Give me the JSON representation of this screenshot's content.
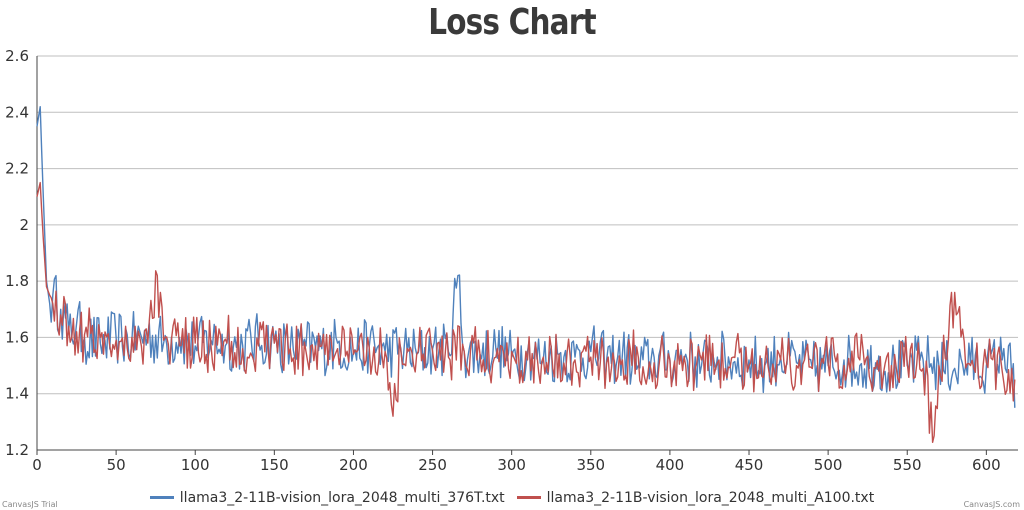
{
  "chart_data": {
    "type": "line",
    "title": "Loss Chart",
    "xlabel": "",
    "ylabel": "",
    "xlim": [
      0,
      620
    ],
    "ylim": [
      1.2,
      2.6
    ],
    "x_ticks": [
      "0",
      "50",
      "100",
      "150",
      "200",
      "250",
      "300",
      "350",
      "400",
      "450",
      "500",
      "550",
      "600"
    ],
    "y_ticks": [
      "1.2",
      "1.4",
      "1.6",
      "1.8",
      "2",
      "2.2",
      "2.4",
      "2.6"
    ],
    "grid": true,
    "legend_position": "bottom",
    "series": [
      {
        "name": "llama3_2-11B-vision_lora_2048_multi_376T.txt",
        "color": "#4f81bc",
        "x": [
          0,
          2,
          4,
          6,
          8,
          10,
          15,
          20,
          25,
          30,
          40,
          50,
          60,
          70,
          80,
          90,
          100,
          110,
          120,
          130,
          140,
          150,
          160,
          170,
          180,
          190,
          200,
          210,
          220,
          230,
          240,
          250,
          260,
          266,
          270,
          280,
          290,
          300,
          310,
          320,
          330,
          340,
          350,
          360,
          370,
          380,
          390,
          400,
          410,
          420,
          430,
          440,
          450,
          460,
          470,
          480,
          490,
          500,
          510,
          520,
          530,
          540,
          550,
          560,
          570,
          580,
          590,
          600,
          610,
          615,
          618
        ],
        "y": [
          2.35,
          2.42,
          2.1,
          1.8,
          1.72,
          1.75,
          1.7,
          1.62,
          1.65,
          1.6,
          1.58,
          1.6,
          1.59,
          1.61,
          1.58,
          1.6,
          1.57,
          1.59,
          1.58,
          1.57,
          1.59,
          1.58,
          1.56,
          1.57,
          1.56,
          1.58,
          1.55,
          1.57,
          1.55,
          1.56,
          1.54,
          1.56,
          1.55,
          1.82,
          1.55,
          1.54,
          1.56,
          1.53,
          1.55,
          1.52,
          1.54,
          1.53,
          1.55,
          1.52,
          1.54,
          1.5,
          1.53,
          1.52,
          1.54,
          1.5,
          1.53,
          1.51,
          1.52,
          1.5,
          1.53,
          1.51,
          1.49,
          1.5,
          1.52,
          1.5,
          1.51,
          1.49,
          1.5,
          1.52,
          1.5,
          1.49,
          1.51,
          1.5,
          1.52,
          1.58,
          1.35
        ]
      },
      {
        "name": "llama3_2-11B-vision_lora_2048_multi_A100.txt",
        "color": "#c0504e",
        "x": [
          0,
          2,
          4,
          6,
          8,
          10,
          15,
          20,
          25,
          30,
          40,
          50,
          60,
          70,
          76,
          80,
          90,
          100,
          110,
          120,
          130,
          140,
          150,
          160,
          170,
          180,
          190,
          200,
          210,
          220,
          225,
          230,
          240,
          250,
          260,
          270,
          280,
          290,
          300,
          310,
          320,
          330,
          340,
          350,
          360,
          370,
          380,
          390,
          400,
          410,
          420,
          430,
          440,
          450,
          460,
          470,
          480,
          490,
          500,
          510,
          520,
          530,
          540,
          550,
          560,
          567,
          570,
          575,
          580,
          590,
          600,
          610,
          618
        ],
        "y": [
          2.1,
          2.15,
          1.95,
          1.78,
          1.75,
          1.72,
          1.68,
          1.64,
          1.62,
          1.61,
          1.6,
          1.59,
          1.6,
          1.58,
          1.82,
          1.59,
          1.57,
          1.58,
          1.57,
          1.58,
          1.56,
          1.57,
          1.58,
          1.56,
          1.55,
          1.57,
          1.56,
          1.54,
          1.56,
          1.55,
          1.32,
          1.55,
          1.54,
          1.55,
          1.53,
          1.55,
          1.54,
          1.53,
          1.55,
          1.52,
          1.53,
          1.54,
          1.52,
          1.53,
          1.51,
          1.52,
          1.53,
          1.51,
          1.52,
          1.5,
          1.52,
          1.51,
          1.53,
          1.5,
          1.51,
          1.52,
          1.5,
          1.49,
          1.51,
          1.5,
          1.52,
          1.49,
          1.5,
          1.51,
          1.49,
          1.25,
          1.5,
          1.52,
          1.76,
          1.5,
          1.51,
          1.48,
          1.45
        ]
      }
    ]
  },
  "credits": {
    "left": "CanvasJS Trial",
    "right": "CanvasJS.com"
  }
}
